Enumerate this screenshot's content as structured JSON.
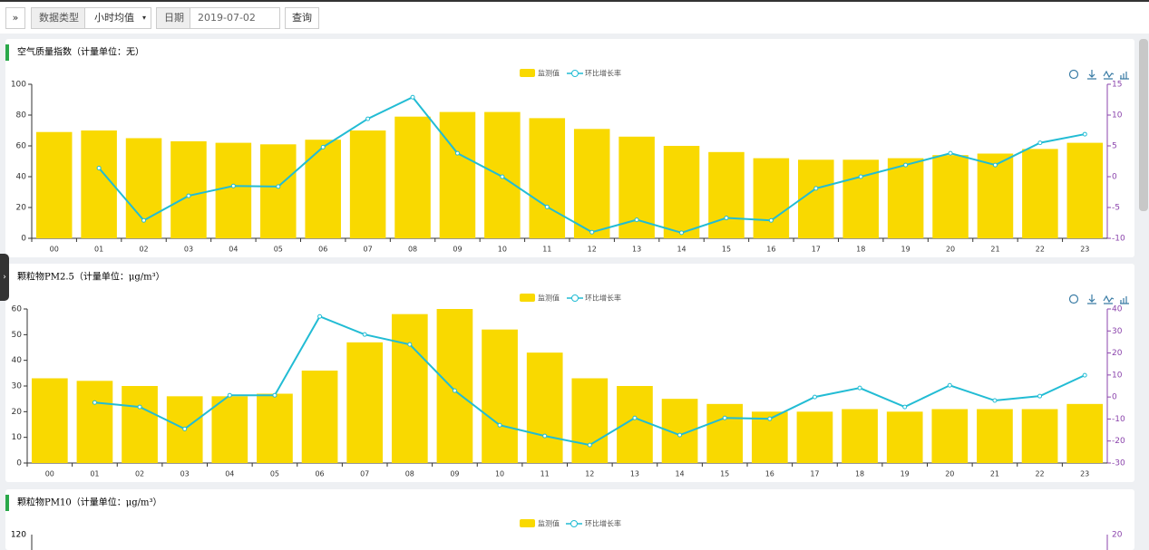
{
  "toolbar": {
    "expand": "»",
    "data_type_label": "数据类型",
    "data_type_value": "小时均值",
    "date_label": "日期",
    "date_value": "2019-07-02",
    "query": "查询"
  },
  "chart_data": [
    {
      "type": "bar",
      "title": "空气质量指数（计量单位：无）",
      "categories": [
        "00",
        "01",
        "02",
        "03",
        "04",
        "05",
        "06",
        "07",
        "08",
        "09",
        "10",
        "11",
        "12",
        "13",
        "14",
        "15",
        "16",
        "17",
        "18",
        "19",
        "20",
        "21",
        "22",
        "23"
      ],
      "series": [
        {
          "name": "监测值",
          "type": "bar",
          "color": "#f9d900",
          "values": [
            69,
            70,
            65,
            63,
            62,
            61,
            64,
            70,
            79,
            82,
            82,
            78,
            71,
            66,
            60,
            56,
            52,
            51,
            51,
            52,
            54,
            55,
            58,
            62
          ]
        },
        {
          "name": "环比增长率",
          "type": "line",
          "axis": "y2",
          "color": "#22bcd4",
          "values": [
            null,
            1.4,
            -7.1,
            -3.1,
            -1.5,
            -1.6,
            4.8,
            9.4,
            12.9,
            3.8,
            0,
            -4.9,
            -9.0,
            -7.0,
            -9.1,
            -6.7,
            -7.1,
            -1.9,
            0,
            1.9,
            3.8,
            1.9,
            5.5,
            6.9
          ]
        }
      ],
      "ylim": [
        0,
        100
      ],
      "yticks": [
        0,
        20,
        40,
        60,
        80,
        100
      ],
      "y2lim": [
        -10,
        15
      ],
      "y2ticks": [
        -10,
        -5,
        0,
        5,
        10,
        15
      ]
    },
    {
      "type": "bar",
      "title": "颗粒物PM2.5（计量单位：μg/m³）",
      "categories": [
        "00",
        "01",
        "02",
        "03",
        "04",
        "05",
        "06",
        "07",
        "08",
        "09",
        "10",
        "11",
        "12",
        "13",
        "14",
        "15",
        "16",
        "17",
        "18",
        "19",
        "20",
        "21",
        "22",
        "23"
      ],
      "series": [
        {
          "name": "监测值",
          "type": "bar",
          "color": "#f9d900",
          "values": [
            33,
            32,
            30,
            26,
            26,
            27,
            36,
            47,
            58,
            60,
            52,
            43,
            33,
            30,
            25,
            23,
            20,
            20,
            21,
            20,
            21,
            21,
            21,
            23
          ]
        },
        {
          "name": "环比增长率",
          "type": "line",
          "axis": "y2",
          "color": "#22bcd4",
          "values": [
            null,
            -2.5,
            -4.5,
            -14.5,
            0.8,
            0.8,
            36.6,
            28.4,
            23.9,
            2.9,
            -12.8,
            -17.7,
            -21.8,
            -9.5,
            -17.3,
            -9.5,
            -9.9,
            0,
            4.1,
            -4.5,
            5.3,
            -1.6,
            0.4,
            9.9
          ]
        }
      ],
      "ylim": [
        0,
        60
      ],
      "yticks": [
        0,
        10,
        20,
        30,
        40,
        50,
        60
      ],
      "y2lim": [
        -30,
        40
      ],
      "y2ticks": [
        -30,
        -20,
        -10,
        0,
        10,
        20,
        30,
        40
      ]
    }
  ],
  "partial_panel": {
    "title": "颗粒物PM10（计量单位：μg/m³）",
    "legend": [
      "监测值",
      "环比增长率"
    ],
    "ytick_top": "120",
    "y2tick_top": "20"
  }
}
